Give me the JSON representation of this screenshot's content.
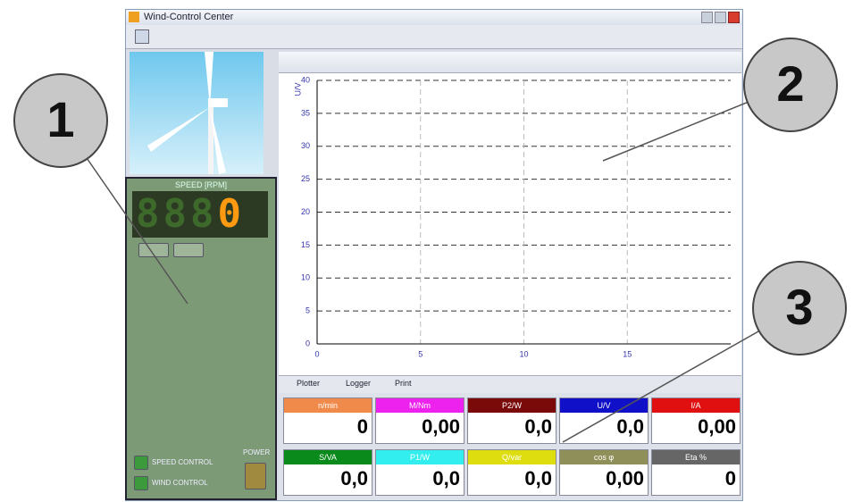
{
  "window": {
    "title": "Wind-Control Center"
  },
  "left_panel": {
    "speed_label": "SPEED [RPM]",
    "display_dim": "888",
    "display_value": "0",
    "buttons": [
      "SPEED CONTROL",
      "WIND CONTROL"
    ],
    "power_label": "POWER"
  },
  "chart_data": {
    "type": "line",
    "y_label": "U/V",
    "xlim": [
      0,
      20
    ],
    "xticks": [
      0,
      5,
      10,
      15
    ],
    "ylim": [
      0,
      40
    ],
    "yticks": [
      0,
      5,
      10,
      15,
      20,
      25,
      30,
      35,
      40
    ],
    "grid": true
  },
  "tabs": [
    "Plotter",
    "Logger",
    "Print"
  ],
  "meters": [
    {
      "label": "n/min",
      "value": "0",
      "color": "#f08a4b"
    },
    {
      "label": "M/Nm",
      "value": "0,00",
      "color": "#ee22ee"
    },
    {
      "label": "P2/W",
      "value": "0,0",
      "color": "#7a0a0a"
    },
    {
      "label": "U/V",
      "value": "0,0",
      "color": "#1010c8"
    },
    {
      "label": "I/A",
      "value": "0,00",
      "color": "#e01010"
    },
    {
      "label": "S/VA",
      "value": "0,0",
      "color": "#0a8a1a"
    },
    {
      "label": "P1/W",
      "value": "0,0",
      "color": "#33eeee"
    },
    {
      "label": "Q/var",
      "value": "0,0",
      "color": "#dddd10"
    },
    {
      "label": "cos φ",
      "value": "0,00",
      "color": "#8f8f5a"
    },
    {
      "label": "Eta %",
      "value": "0",
      "color": "#666666"
    }
  ],
  "callouts": [
    "1",
    "2",
    "3"
  ]
}
